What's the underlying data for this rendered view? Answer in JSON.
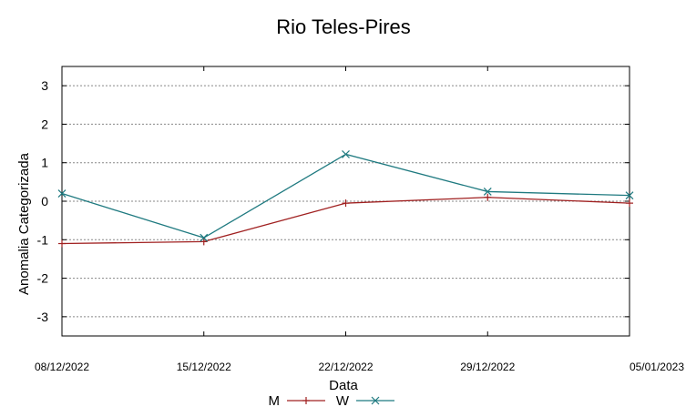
{
  "chart_data": {
    "type": "line",
    "title": "Rio Teles-Pires",
    "xlabel": "Data",
    "ylabel": "Anomalia Categorizada",
    "categories": [
      "08/12/2022",
      "15/12/2022",
      "22/12/2022",
      "29/12/2022",
      "05/01/2023"
    ],
    "ylim": [
      -3.5,
      3.5
    ],
    "yticks": [
      -3,
      -2,
      -1,
      0,
      1,
      2,
      3
    ],
    "ytick_labels": [
      "-3",
      "-2",
      "-1",
      "0",
      "1",
      "2",
      "3"
    ],
    "grid": true,
    "legend_position": "bottom",
    "series": [
      {
        "name": "M",
        "color": "#a02020",
        "marker": "plus",
        "values": [
          -1.1,
          -1.05,
          -0.05,
          0.1,
          -0.05
        ]
      },
      {
        "name": "W",
        "color": "#1f7a80",
        "marker": "cross",
        "values": [
          0.2,
          -0.95,
          1.22,
          0.25,
          0.15
        ]
      }
    ]
  }
}
